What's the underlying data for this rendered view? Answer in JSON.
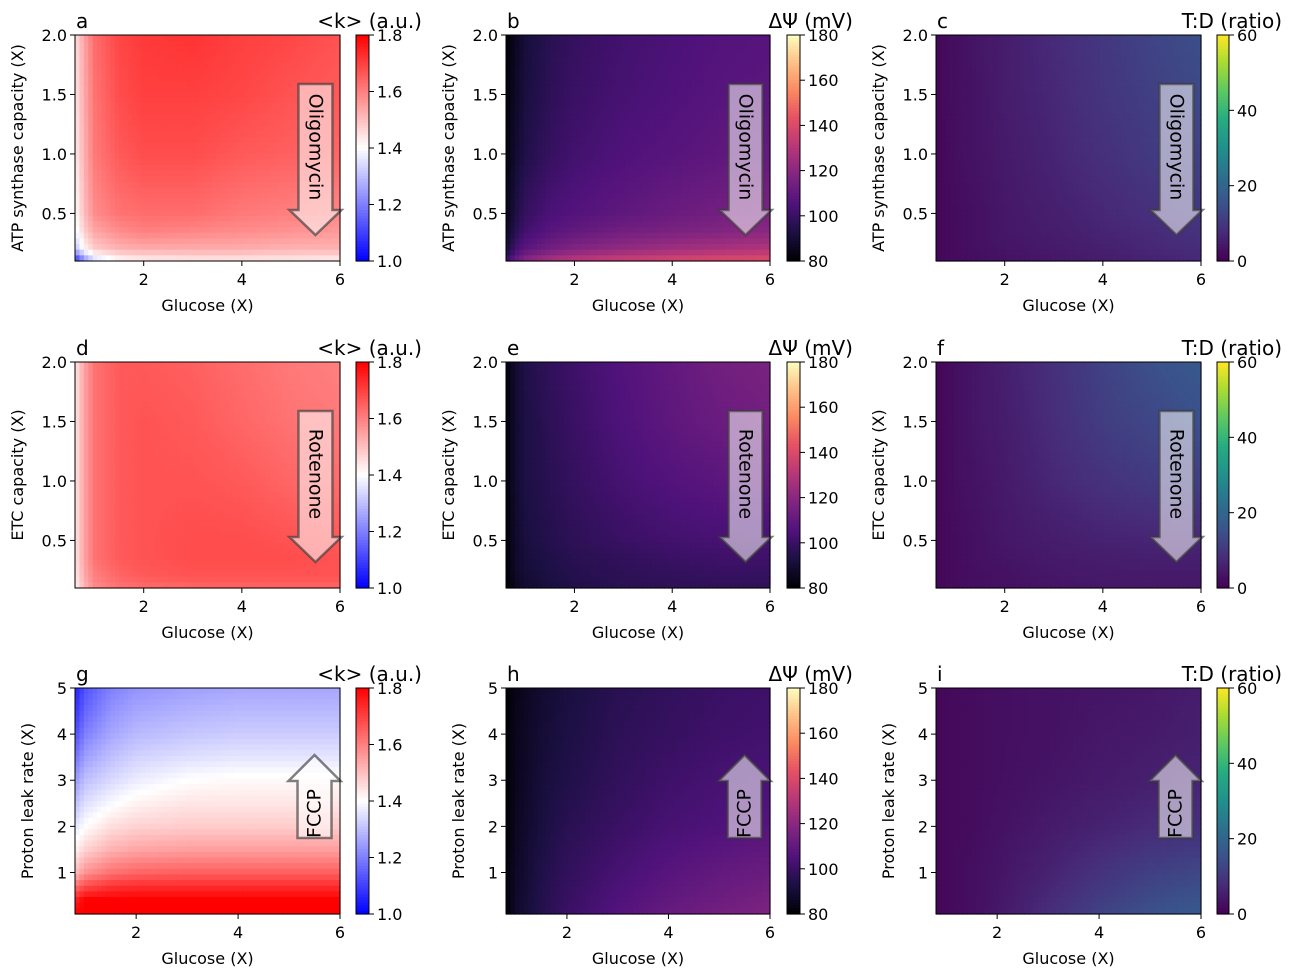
{
  "chart_data": [
    {
      "type": "heatmap",
      "panel": "a",
      "title_left": "a",
      "title_right": "<k> (a.u.)",
      "xlabel": "Glucose (X)",
      "ylabel": "ATP synthase capacity (X)",
      "xlim": [
        0.6,
        6
      ],
      "ylim": [
        0.1,
        2.0
      ],
      "xticks": [
        "2",
        "4",
        "6"
      ],
      "yticks": [
        "0.5",
        "1.0",
        "1.5",
        "2.0"
      ],
      "colormap": "bwr",
      "clim": [
        1.0,
        1.8
      ],
      "cbar_ticks": [
        "1.0",
        "1.2",
        "1.4",
        "1.6",
        "1.8"
      ],
      "annotation": {
        "label": "Oligomycin",
        "direction": "down"
      },
      "grid_x": [
        0.6,
        0.8,
        1.0,
        1.5,
        2.0,
        3.0,
        4.0,
        5.0,
        6.0
      ],
      "grid_y": [
        0.1,
        0.2,
        0.35,
        0.5,
        1.0,
        1.5,
        2.0
      ],
      "z": [
        [
          1.05,
          1.22,
          1.33,
          1.4,
          1.42,
          1.43,
          1.43,
          1.43,
          1.42
        ],
        [
          1.3,
          1.42,
          1.48,
          1.52,
          1.53,
          1.53,
          1.53,
          1.52,
          1.52
        ],
        [
          1.38,
          1.48,
          1.54,
          1.58,
          1.6,
          1.59,
          1.58,
          1.57,
          1.56
        ],
        [
          1.4,
          1.51,
          1.58,
          1.62,
          1.63,
          1.63,
          1.61,
          1.6,
          1.59
        ],
        [
          1.43,
          1.53,
          1.61,
          1.66,
          1.68,
          1.68,
          1.66,
          1.65,
          1.64
        ],
        [
          1.44,
          1.54,
          1.62,
          1.68,
          1.7,
          1.7,
          1.69,
          1.67,
          1.66
        ],
        [
          1.45,
          1.55,
          1.63,
          1.69,
          1.71,
          1.72,
          1.7,
          1.69,
          1.67
        ]
      ]
    },
    {
      "type": "heatmap",
      "panel": "b",
      "title_left": "b",
      "title_right": "ΔΨ (mV)",
      "xlabel": "Glucose (X)",
      "ylabel": "ATP synthase capacity (X)",
      "xlim": [
        0.6,
        6
      ],
      "ylim": [
        0.1,
        2.0
      ],
      "xticks": [
        "2",
        "4",
        "6"
      ],
      "yticks": [
        "0.5",
        "1.0",
        "1.5",
        "2.0"
      ],
      "colormap": "magma",
      "clim": [
        80,
        180
      ],
      "cbar_ticks": [
        "80",
        "100",
        "120",
        "140",
        "160",
        "180"
      ],
      "annotation": {
        "label": "Oligomycin",
        "direction": "down"
      },
      "grid_x": [
        0.6,
        0.8,
        1.0,
        1.5,
        2.0,
        3.0,
        4.0,
        5.0,
        6.0
      ],
      "grid_y": [
        0.1,
        0.2,
        0.35,
        0.5,
        1.0,
        1.5,
        2.0
      ],
      "z": [
        [
          100,
          112,
          120,
          128,
          132,
          136,
          139,
          141,
          142
        ],
        [
          90,
          102,
          108,
          114,
          118,
          122,
          125,
          127,
          129
        ],
        [
          86,
          96,
          102,
          107,
          110,
          114,
          116,
          118,
          120
        ],
        [
          84,
          93,
          99,
          104,
          106,
          109,
          112,
          114,
          116
        ],
        [
          82,
          89,
          94,
          99,
          102,
          105,
          107,
          109,
          111
        ],
        [
          81,
          87,
          92,
          97,
          100,
          103,
          105,
          107,
          108
        ],
        [
          80,
          86,
          91,
          96,
          99,
          102,
          104,
          106,
          107
        ]
      ]
    },
    {
      "type": "heatmap",
      "panel": "c",
      "title_left": "c",
      "title_right": "T:D (ratio)",
      "xlabel": "Glucose (X)",
      "ylabel": "ATP synthase capacity (X)",
      "xlim": [
        0.6,
        6
      ],
      "ylim": [
        0.1,
        2.0
      ],
      "xticks": [
        "2",
        "4",
        "6"
      ],
      "yticks": [
        "0.5",
        "1.0",
        "1.5",
        "2.0"
      ],
      "colormap": "viridis",
      "clim": [
        0,
        60
      ],
      "cbar_ticks": [
        "0",
        "20",
        "40",
        "60"
      ],
      "annotation": {
        "label": "Oligomycin",
        "direction": "down"
      },
      "grid_x": [
        0.6,
        0.8,
        1.0,
        1.5,
        2.0,
        3.0,
        4.0,
        5.0,
        6.0
      ],
      "grid_y": [
        0.1,
        0.2,
        0.35,
        0.5,
        1.0,
        1.5,
        2.0
      ],
      "z": [
        [
          1,
          1.5,
          2,
          2.5,
          3,
          4,
          5,
          6,
          7
        ],
        [
          1,
          1.5,
          2,
          3,
          3.5,
          4.5,
          5.5,
          7,
          8
        ],
        [
          1,
          1.5,
          2,
          3,
          4,
          5,
          6.5,
          7.5,
          9
        ],
        [
          1,
          1.5,
          2,
          3,
          4,
          5.5,
          7,
          8.5,
          10
        ],
        [
          1,
          1.5,
          2.5,
          3.5,
          4.5,
          6.5,
          8.5,
          10.5,
          12
        ],
        [
          1,
          2,
          2.5,
          3.5,
          5,
          7,
          9.5,
          11.5,
          13.5
        ],
        [
          1,
          2,
          2.5,
          4,
          5,
          7.5,
          10,
          12.5,
          14.5
        ]
      ]
    },
    {
      "type": "heatmap",
      "panel": "d",
      "title_left": "d",
      "title_right": "<k> (a.u.)",
      "xlabel": "Glucose (X)",
      "ylabel": "ETC capacity (X)",
      "xlim": [
        0.6,
        6
      ],
      "ylim": [
        0.1,
        2.0
      ],
      "xticks": [
        "2",
        "4",
        "6"
      ],
      "yticks": [
        "0.5",
        "1.0",
        "1.5",
        "2.0"
      ],
      "colormap": "bwr",
      "clim": [
        1.0,
        1.8
      ],
      "cbar_ticks": [
        "1.0",
        "1.2",
        "1.4",
        "1.6",
        "1.8"
      ],
      "annotation": {
        "label": "Rotenone",
        "direction": "down"
      },
      "grid_x": [
        0.6,
        0.8,
        1.0,
        1.5,
        2.0,
        3.0,
        4.0,
        5.0,
        6.0
      ],
      "grid_y": [
        0.1,
        0.2,
        0.35,
        0.5,
        1.0,
        1.5,
        2.0
      ],
      "z": [
        [
          1.42,
          1.52,
          1.58,
          1.62,
          1.63,
          1.64,
          1.64,
          1.64,
          1.64
        ],
        [
          1.43,
          1.54,
          1.6,
          1.64,
          1.66,
          1.67,
          1.67,
          1.67,
          1.67
        ],
        [
          1.44,
          1.55,
          1.62,
          1.66,
          1.67,
          1.68,
          1.68,
          1.68,
          1.67
        ],
        [
          1.44,
          1.55,
          1.62,
          1.66,
          1.67,
          1.68,
          1.68,
          1.67,
          1.66
        ],
        [
          1.44,
          1.55,
          1.62,
          1.66,
          1.67,
          1.67,
          1.66,
          1.64,
          1.63
        ],
        [
          1.44,
          1.55,
          1.62,
          1.66,
          1.67,
          1.66,
          1.64,
          1.62,
          1.61
        ],
        [
          1.44,
          1.55,
          1.62,
          1.66,
          1.66,
          1.65,
          1.63,
          1.61,
          1.6
        ]
      ]
    },
    {
      "type": "heatmap",
      "panel": "e",
      "title_left": "e",
      "title_right": "ΔΨ (mV)",
      "xlabel": "Glucose (X)",
      "ylabel": "ETC capacity (X)",
      "xlim": [
        0.6,
        6
      ],
      "ylim": [
        0.1,
        2.0
      ],
      "xticks": [
        "2",
        "4",
        "6"
      ],
      "yticks": [
        "0.5",
        "1.0",
        "1.5",
        "2.0"
      ],
      "colormap": "magma",
      "clim": [
        80,
        180
      ],
      "cbar_ticks": [
        "80",
        "100",
        "120",
        "140",
        "160",
        "180"
      ],
      "annotation": {
        "label": "Rotenone",
        "direction": "down"
      },
      "grid_x": [
        0.6,
        0.8,
        1.0,
        1.5,
        2.0,
        3.0,
        4.0,
        5.0,
        6.0
      ],
      "grid_y": [
        0.1,
        0.2,
        0.35,
        0.5,
        1.0,
        1.5,
        2.0
      ],
      "z": [
        [
          80,
          86,
          89,
          92,
          94,
          96,
          97,
          97,
          97
        ],
        [
          80,
          87,
          90,
          93,
          95,
          97,
          98,
          99,
          99
        ],
        [
          80,
          88,
          91,
          94,
          96,
          98,
          100,
          101,
          101
        ],
        [
          81,
          88,
          92,
          95,
          97,
          100,
          102,
          103,
          103
        ],
        [
          81,
          89,
          93,
          96,
          99,
          103,
          106,
          108,
          110
        ],
        [
          81,
          89,
          93,
          97,
          100,
          105,
          109,
          112,
          114
        ],
        [
          81,
          89,
          94,
          98,
          101,
          106,
          110,
          114,
          116
        ]
      ]
    },
    {
      "type": "heatmap",
      "panel": "f",
      "title_left": "f",
      "title_right": "T:D (ratio)",
      "xlabel": "Glucose (X)",
      "ylabel": "ETC capacity (X)",
      "xlim": [
        0.6,
        6
      ],
      "ylim": [
        0.1,
        2.0
      ],
      "xticks": [
        "2",
        "4",
        "6"
      ],
      "yticks": [
        "0.5",
        "1.0",
        "1.5",
        "2.0"
      ],
      "colormap": "viridis",
      "clim": [
        0,
        60
      ],
      "cbar_ticks": [
        "0",
        "20",
        "40",
        "60"
      ],
      "annotation": {
        "label": "Rotenone",
        "direction": "down"
      },
      "grid_x": [
        0.6,
        0.8,
        1.0,
        1.5,
        2.0,
        3.0,
        4.0,
        5.0,
        6.0
      ],
      "grid_y": [
        0.1,
        0.2,
        0.35,
        0.5,
        1.0,
        1.5,
        2.0
      ],
      "z": [
        [
          1,
          1.5,
          2,
          2.5,
          3,
          3.5,
          4,
          4,
          4
        ],
        [
          1,
          1.5,
          2,
          2.5,
          3,
          4,
          4.5,
          4.5,
          4.5
        ],
        [
          1,
          1.5,
          2,
          3,
          3.5,
          4.5,
          5,
          5.5,
          5.5
        ],
        [
          1,
          1.5,
          2,
          3,
          4,
          5,
          6,
          6.5,
          7
        ],
        [
          1,
          1.5,
          2.5,
          3.5,
          4.5,
          7,
          9,
          10.5,
          11.5
        ],
        [
          1,
          1.5,
          2.5,
          4,
          5,
          8,
          11,
          13,
          15
        ],
        [
          1,
          1.5,
          2.5,
          4,
          5.5,
          8.5,
          12,
          15,
          17
        ]
      ]
    },
    {
      "type": "heatmap",
      "panel": "g",
      "title_left": "g",
      "title_right": "<k> (a.u.)",
      "xlabel": "Glucose (X)",
      "ylabel": "Proton leak rate (X)",
      "xlim": [
        0.8,
        6
      ],
      "ylim": [
        0.1,
        5
      ],
      "xticks": [
        "2",
        "4",
        "6"
      ],
      "yticks": [
        "1",
        "2",
        "3",
        "4",
        "5"
      ],
      "colormap": "bwr",
      "clim": [
        1.0,
        1.8
      ],
      "cbar_ticks": [
        "1.0",
        "1.2",
        "1.4",
        "1.6",
        "1.8"
      ],
      "annotation": {
        "label": "FCCP",
        "direction": "up"
      },
      "grid_x": [
        0.8,
        1.0,
        1.5,
        2.0,
        3.0,
        4.0,
        5.0,
        6.0
      ],
      "grid_y": [
        0.1,
        0.4,
        0.7,
        1.0,
        1.5,
        2.0,
        2.5,
        3.0,
        3.5,
        4.0,
        4.5,
        5.0
      ],
      "z": [
        [
          1.8,
          1.8,
          1.8,
          1.8,
          1.8,
          1.8,
          1.8,
          1.8
        ],
        [
          1.75,
          1.8,
          1.8,
          1.8,
          1.8,
          1.8,
          1.8,
          1.8
        ],
        [
          1.62,
          1.68,
          1.72,
          1.73,
          1.73,
          1.73,
          1.73,
          1.73
        ],
        [
          1.5,
          1.57,
          1.62,
          1.64,
          1.65,
          1.65,
          1.65,
          1.65
        ],
        [
          1.42,
          1.47,
          1.52,
          1.54,
          1.55,
          1.55,
          1.55,
          1.55
        ],
        [
          1.36,
          1.4,
          1.45,
          1.47,
          1.48,
          1.48,
          1.48,
          1.48
        ],
        [
          1.3,
          1.35,
          1.39,
          1.42,
          1.44,
          1.44,
          1.44,
          1.44
        ],
        [
          1.24,
          1.3,
          1.34,
          1.37,
          1.4,
          1.41,
          1.41,
          1.41
        ],
        [
          1.18,
          1.25,
          1.3,
          1.33,
          1.35,
          1.36,
          1.36,
          1.36
        ],
        [
          1.12,
          1.2,
          1.26,
          1.29,
          1.31,
          1.32,
          1.32,
          1.32
        ],
        [
          1.08,
          1.16,
          1.23,
          1.26,
          1.28,
          1.29,
          1.29,
          1.29
        ],
        [
          1.05,
          1.13,
          1.2,
          1.23,
          1.25,
          1.26,
          1.26,
          1.26
        ]
      ]
    },
    {
      "type": "heatmap",
      "panel": "h",
      "title_left": "h",
      "title_right": "ΔΨ (mV)",
      "xlabel": "Glucose (X)",
      "ylabel": "Proton leak rate (X)",
      "xlim": [
        0.8,
        6
      ],
      "ylim": [
        0.1,
        5
      ],
      "xticks": [
        "2",
        "4",
        "6"
      ],
      "yticks": [
        "1",
        "2",
        "3",
        "4",
        "5"
      ],
      "colormap": "magma",
      "clim": [
        80,
        180
      ],
      "cbar_ticks": [
        "80",
        "100",
        "120",
        "140",
        "160",
        "180"
      ],
      "annotation": {
        "label": "FCCP",
        "direction": "up"
      },
      "grid_x": [
        0.8,
        1.0,
        1.5,
        2.0,
        3.0,
        4.0,
        5.0,
        6.0
      ],
      "grid_y": [
        0.1,
        1.0,
        2.0,
        3.0,
        4.0,
        5.0
      ],
      "z": [
        [
          81,
          88,
          95,
          100,
          106,
          111,
          114,
          117
        ],
        [
          81,
          87,
          94,
          98,
          103,
          107,
          110,
          112
        ],
        [
          80,
          86,
          92,
          96,
          100,
          103,
          105,
          107
        ],
        [
          80,
          85,
          91,
          94,
          98,
          101,
          103,
          104
        ],
        [
          80,
          85,
          90,
          93,
          97,
          99,
          101,
          102
        ],
        [
          80,
          84,
          89,
          92,
          96,
          98,
          100,
          101
        ]
      ]
    },
    {
      "type": "heatmap",
      "panel": "i",
      "title_left": "i",
      "title_right": "T:D (ratio)",
      "xlabel": "Glucose (X)",
      "ylabel": "Proton leak rate (X)",
      "xlim": [
        0.8,
        6
      ],
      "ylim": [
        0.1,
        5
      ],
      "xticks": [
        "2",
        "4",
        "6"
      ],
      "yticks": [
        "1",
        "2",
        "3",
        "4",
        "5"
      ],
      "colormap": "viridis",
      "clim": [
        0,
        60
      ],
      "cbar_ticks": [
        "0",
        "20",
        "40",
        "60"
      ],
      "annotation": {
        "label": "FCCP",
        "direction": "up"
      },
      "grid_x": [
        0.8,
        1.0,
        1.5,
        2.0,
        3.0,
        4.0,
        5.0,
        6.0
      ],
      "grid_y": [
        0.1,
        1.0,
        2.0,
        3.0,
        4.0,
        5.0
      ],
      "z": [
        [
          1,
          1.5,
          2.5,
          4,
          8,
          12,
          15,
          17
        ],
        [
          1,
          1.5,
          2.5,
          3.5,
          6,
          9,
          11.5,
          13
        ],
        [
          1,
          1.5,
          2,
          3,
          4.5,
          6,
          7.5,
          8.5
        ],
        [
          1,
          1.5,
          2,
          2.5,
          3.5,
          4.5,
          5.5,
          6.5
        ],
        [
          1,
          1.5,
          2,
          2.5,
          3,
          4,
          4.5,
          5.5
        ],
        [
          1,
          1.5,
          2,
          2.5,
          3,
          3.5,
          4,
          5
        ]
      ]
    }
  ]
}
